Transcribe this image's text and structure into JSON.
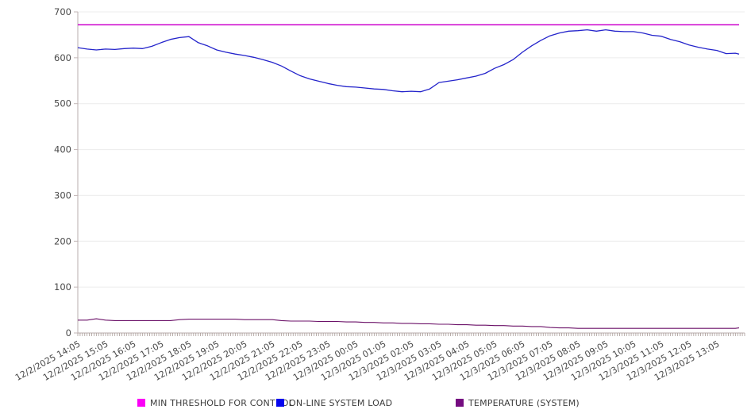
{
  "chart_data": {
    "type": "line",
    "title": "",
    "grid": "horizontal",
    "legend_position": "bottom",
    "y_axis": {
      "min": 0,
      "max": 700,
      "ticks": [
        0,
        100,
        200,
        300,
        400,
        500,
        600,
        700
      ]
    },
    "x_axis": {
      "labels": [
        "12/2/2025 14:05",
        "12/2/2025 15:05",
        "12/2/2025 16:05",
        "12/2/2025 17:05",
        "12/2/2025 18:05",
        "12/2/2025 19:05",
        "12/2/2025 20:05",
        "12/2/2025 21:05",
        "12/2/2025 22:05",
        "12/2/2025 23:05",
        "12/3/2025 00:05",
        "12/3/2025 01:05",
        "12/3/2025 02:05",
        "12/3/2025 03:05",
        "12/3/2025 04:05",
        "12/3/2025 05:05",
        "12/3/2025 06:05",
        "12/3/2025 07:05",
        "12/3/2025 08:05",
        "12/3/2025 09:05",
        "12/3/2025 10:05",
        "12/3/2025 11:05",
        "12/3/2025 12:05",
        "12/3/2025 13:05"
      ],
      "label_interval_minutes": 60,
      "minor_tick_minutes": 5
    },
    "sample_interval_minutes": 20,
    "series": [
      {
        "name": "MIN THRESHOLD FOR CONTROL",
        "type": "constant",
        "value": 672,
        "line_color": "#CC00CC",
        "legend_color": "#FB00F7"
      },
      {
        "name": "ON-LINE SYSTEM LOAD",
        "type": "sampled",
        "line_color": "#2424CB",
        "legend_color": "#0505EE",
        "values": [
          622,
          619,
          617,
          619,
          618,
          620,
          621,
          620,
          625,
          633,
          640,
          644,
          646,
          633,
          626,
          617,
          612,
          608,
          605,
          601,
          596,
          590,
          582,
          571,
          561,
          554,
          549,
          544,
          540,
          537,
          536,
          534,
          532,
          531,
          528,
          526,
          527,
          526,
          532,
          546,
          549,
          552,
          556,
          560,
          566,
          577,
          585,
          596,
          612,
          626,
          638,
          648,
          654,
          658,
          659,
          661,
          658,
          661,
          658,
          657,
          657,
          654,
          649,
          647,
          640,
          635,
          628,
          623,
          619,
          616,
          609,
          610,
          608
        ]
      },
      {
        "name": "TEMPERATURE (SYSTEM)",
        "type": "sampled",
        "line_color": "#6B1168",
        "legend_color": "#750C80",
        "values": [
          28,
          28,
          31,
          28,
          27,
          27,
          27,
          27,
          27,
          27,
          27,
          29,
          30,
          30,
          30,
          30,
          30,
          30,
          29,
          29,
          29,
          29,
          27,
          26,
          26,
          26,
          25,
          25,
          25,
          24,
          24,
          23,
          23,
          22,
          22,
          21,
          21,
          20,
          20,
          19,
          19,
          18,
          18,
          17,
          17,
          16,
          16,
          15,
          15,
          14,
          14,
          12,
          11,
          11,
          10,
          10,
          10,
          10,
          10,
          10,
          10,
          10,
          10,
          10,
          10,
          10,
          10,
          10,
          10,
          10,
          10,
          10,
          11
        ]
      }
    ]
  }
}
